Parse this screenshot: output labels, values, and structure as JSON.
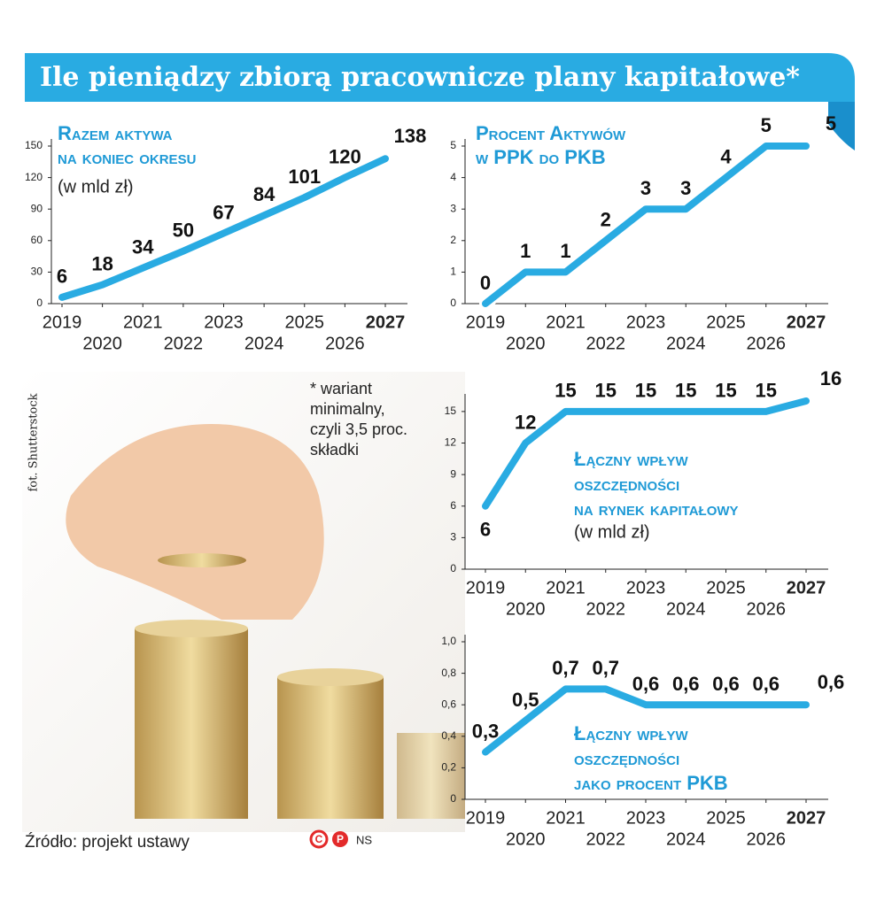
{
  "title": "Ile pieniądzy zbiorą pracownicze plany kapitałowe*",
  "photo_credit": "fot. Shutterstock",
  "note": [
    "* wariant",
    "minimalny,",
    "czyli 3,5 proc.",
    "składki"
  ],
  "source": "Źródło: projekt ustawy",
  "copyright": "NS",
  "chart_data": [
    {
      "type": "line",
      "title": [
        "Razem aktywa",
        "na koniec okresu"
      ],
      "subtitle": "(w mld zł)",
      "x": [
        2019,
        2020,
        2021,
        2022,
        2023,
        2024,
        2025,
        2026,
        2027
      ],
      "values": [
        6,
        18,
        34,
        50,
        67,
        84,
        101,
        120,
        138
      ],
      "color": "#29abe2",
      "ylim": [
        0,
        150
      ],
      "yticks": [
        0,
        30,
        60,
        90,
        120,
        150
      ]
    },
    {
      "type": "line",
      "title": [
        "Procent Aktywów",
        "w PPK do PKB"
      ],
      "x": [
        2019,
        2020,
        2021,
        2022,
        2023,
        2024,
        2025,
        2026,
        2027
      ],
      "values": [
        0,
        1,
        1,
        2,
        3,
        3,
        4,
        5,
        5
      ],
      "color": "#29abe2",
      "ylim": [
        0,
        5
      ],
      "yticks": [
        0,
        1,
        2,
        3,
        4,
        5
      ]
    },
    {
      "type": "line",
      "title": [
        "Łączny wpływ",
        "oszczędności",
        "na rynek kapitałowy"
      ],
      "subtitle": "(w mld zł)",
      "x": [
        2019,
        2020,
        2021,
        2022,
        2023,
        2024,
        2025,
        2026,
        2027
      ],
      "values": [
        6,
        12,
        15,
        15,
        15,
        15,
        15,
        15,
        16
      ],
      "color": "#29abe2",
      "ylim": [
        0,
        16
      ],
      "yticks": [
        0,
        3,
        6,
        9,
        12,
        15
      ]
    },
    {
      "type": "line",
      "title": [
        "Łączny wpływ",
        "oszczędności",
        "jako procent PKB"
      ],
      "x": [
        2019,
        2020,
        2021,
        2022,
        2023,
        2024,
        2025,
        2026,
        2027
      ],
      "values": [
        0.3,
        0.5,
        0.7,
        0.7,
        0.6,
        0.6,
        0.6,
        0.6,
        0.6
      ],
      "value_labels": [
        "0,3",
        "0,5",
        "0,7",
        "0,7",
        "0,6",
        "0,6",
        "0,6",
        "0,6",
        "0,6"
      ],
      "color": "#29abe2",
      "ylim": [
        0,
        1
      ],
      "yticks": [
        0,
        {
          "value": 0.2,
          "label": "0,2"
        },
        {
          "value": 0.4,
          "label": "0,4"
        },
        {
          "value": 0.6,
          "label": "0,6"
        },
        {
          "value": 0.8,
          "label": "0,8"
        },
        {
          "value": 1,
          "label": "1,0"
        }
      ]
    }
  ]
}
